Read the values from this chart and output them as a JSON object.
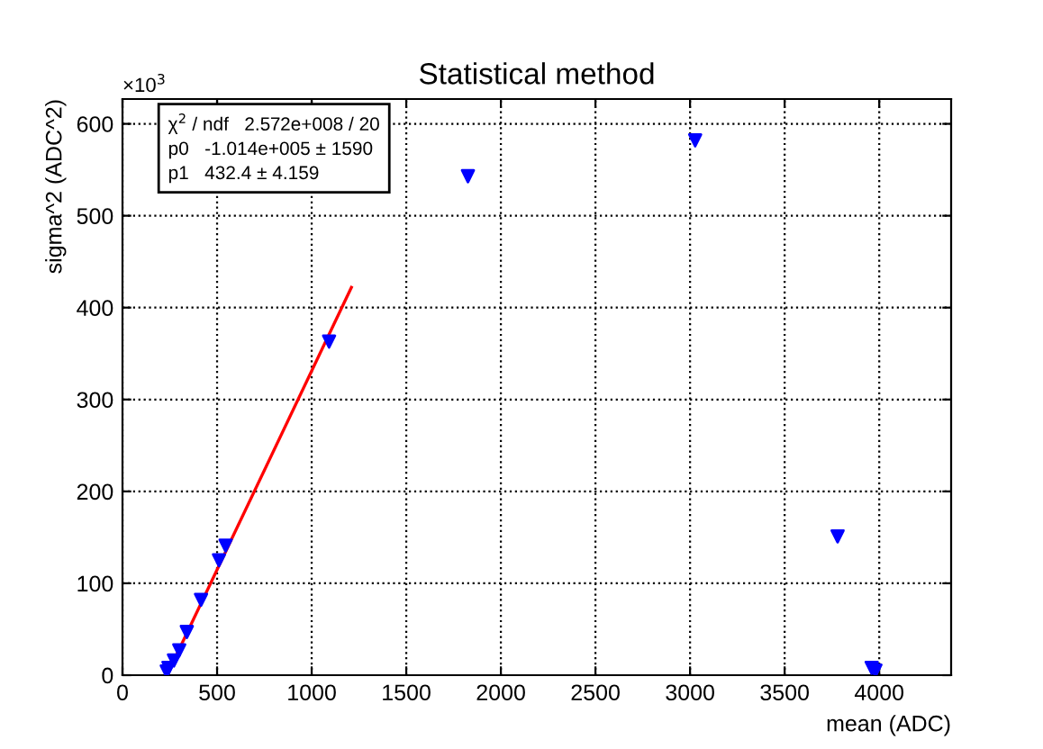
{
  "chart_data": {
    "type": "scatter",
    "title": "Statistical method",
    "xlabel": "mean (ADC)",
    "ylabel": "sigma^2 (ADC^2)",
    "xlim": [
      0,
      4380
    ],
    "ylim": [
      0,
      627
    ],
    "xticks": [
      0,
      500,
      1000,
      1500,
      2000,
      2500,
      3000,
      3500,
      4000
    ],
    "yticks": [
      0,
      100,
      200,
      300,
      400,
      500,
      600
    ],
    "grid": true,
    "series": [
      {
        "color": "#0000ff",
        "marker": "triangle",
        "x": [
          234,
          243,
          272,
          300,
          340,
          415,
          510,
          545,
          1092,
          1826,
          3027,
          3780,
          3960,
          3980
        ],
        "values": [
          4,
          8,
          16,
          27,
          47,
          82,
          125,
          141,
          363,
          543,
          582,
          151,
          8,
          5
        ]
      },
      {
        "type": "line",
        "color": "#ff0000",
        "marker": "none",
        "x": [
          234.5,
          1210
        ],
        "values": [
          0,
          422
        ]
      }
    ],
    "annotations": [
      "×10$^{3}$",
      "χ$^{2}$ / ndf   2.572e+008 / 20",
      "p0   -1.014e+005 ± 1590",
      "p1   432.4 ± 4.159"
    ]
  }
}
